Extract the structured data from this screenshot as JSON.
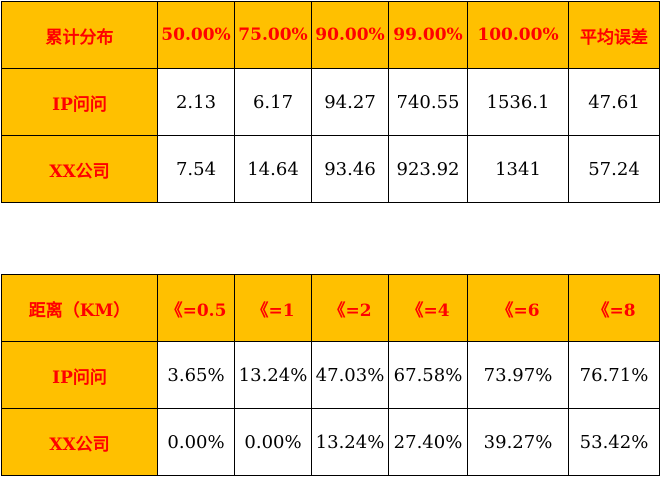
{
  "colors": {
    "header_fill": "#ffc000",
    "header_text": "#ff0000",
    "cell_fill": "#ffffff",
    "cell_text": "#000000",
    "border": "#000000"
  },
  "table_cdf": {
    "corner_label": "累计分布",
    "columns": [
      "50.00%",
      "75.00%",
      "90.00%",
      "99.00%",
      "100.00%",
      "平均误差"
    ],
    "rows": [
      {
        "label": "IP问问",
        "values": [
          "2.13",
          "6.17",
          "94.27",
          "740.55",
          "1536.1",
          "47.61"
        ]
      },
      {
        "label": "XX公司",
        "values": [
          "7.54",
          "14.64",
          "93.46",
          "923.92",
          "1341",
          "57.24"
        ]
      }
    ]
  },
  "table_distance": {
    "corner_label": "距离（KM）",
    "columns": [
      "《=0.5",
      "《=1",
      "《=2",
      "《=4",
      "《=6",
      "《=8"
    ],
    "rows": [
      {
        "label": "IP问问",
        "values": [
          "3.65%",
          "13.24%",
          "47.03%",
          "67.58%",
          "73.97%",
          "76.71%"
        ]
      },
      {
        "label": "XX公司",
        "values": [
          "0.00%",
          "0.00%",
          "13.24%",
          "27.40%",
          "39.27%",
          "53.42%"
        ]
      }
    ]
  }
}
